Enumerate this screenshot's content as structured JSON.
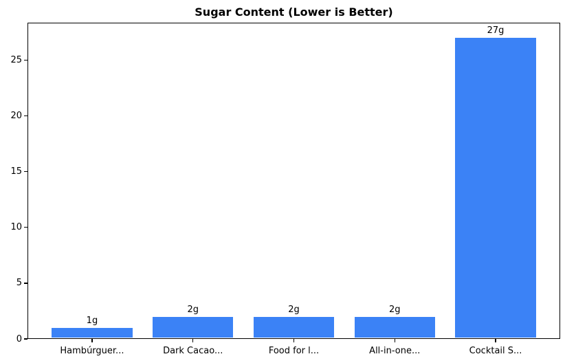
{
  "chart_data": {
    "type": "bar",
    "title": "Sugar Content (Lower is Better)",
    "categories": [
      "Hambúrguer...",
      "Dark Cacao...",
      "Food for l...",
      "All-in-one...",
      "Cocktail S..."
    ],
    "values": [
      1,
      2,
      2,
      2,
      27
    ],
    "bar_labels": [
      "1g",
      "2g",
      "2g",
      "2g",
      "27g"
    ],
    "units": "g",
    "xlabel": "",
    "ylabel": "",
    "yticks": [
      0,
      5,
      10,
      15,
      20,
      25
    ],
    "ylim": [
      0,
      28.35
    ],
    "xlim": [
      -0.64,
      4.64
    ],
    "bar_width": 0.8,
    "bar_color": "#3b82f6",
    "text_color": "#000000",
    "frame_color": "#000000",
    "background_color": "#ffffff",
    "grid": false,
    "legend": null
  }
}
